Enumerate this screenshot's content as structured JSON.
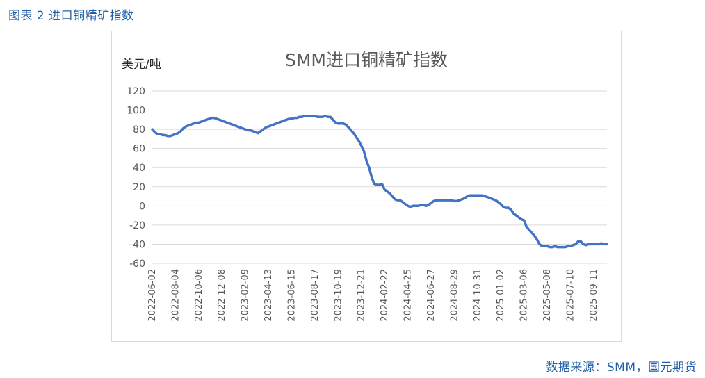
{
  "figure": {
    "caption": "图表 2 进口铜精矿指数",
    "source": "数据来源：SMM，国元期货"
  },
  "chart_data": {
    "type": "line",
    "title": "SMM进口铜精矿指数",
    "ylabel": "美元/吨",
    "xlabel": "",
    "ylim": [
      -60,
      120
    ],
    "yticks": [
      -60,
      -40,
      -20,
      0,
      20,
      40,
      60,
      80,
      100,
      120
    ],
    "grid": true,
    "legend": "none",
    "line_color": "#4472c4",
    "x_tick_labels": [
      "2022-06-02",
      "2022-08-04",
      "2022-10-06",
      "2022-12-08",
      "2023-02-09",
      "2023-04-13",
      "2023-06-15",
      "2023-08-17",
      "2023-10-19",
      "2023-12-21",
      "2024-02-22",
      "2024-04-25",
      "2024-06-27",
      "2024-08-29",
      "2024-10-31",
      "2025-01-02",
      "2025-03-06",
      "2025-05-08",
      "2025-07-10",
      "2025-09-11"
    ],
    "x_range": [
      "2022-06-02",
      "2025-10-17"
    ],
    "series": [
      {
        "points": [
          [
            "2022-06-02",
            80
          ],
          [
            "2022-06-09",
            77
          ],
          [
            "2022-06-16",
            75
          ],
          [
            "2022-06-23",
            75
          ],
          [
            "2022-06-30",
            74
          ],
          [
            "2022-07-07",
            74
          ],
          [
            "2022-07-14",
            73
          ],
          [
            "2022-07-21",
            73
          ],
          [
            "2022-07-28",
            74
          ],
          [
            "2022-08-04",
            75
          ],
          [
            "2022-08-11",
            76
          ],
          [
            "2022-08-18",
            78
          ],
          [
            "2022-08-25",
            81
          ],
          [
            "2022-09-01",
            83
          ],
          [
            "2022-09-08",
            84
          ],
          [
            "2022-09-15",
            85
          ],
          [
            "2022-09-22",
            86
          ],
          [
            "2022-09-29",
            87
          ],
          [
            "2022-10-06",
            87
          ],
          [
            "2022-10-13",
            88
          ],
          [
            "2022-10-20",
            89
          ],
          [
            "2022-10-27",
            90
          ],
          [
            "2022-11-03",
            91
          ],
          [
            "2022-11-10",
            92
          ],
          [
            "2022-11-17",
            92
          ],
          [
            "2022-11-24",
            91
          ],
          [
            "2022-12-01",
            90
          ],
          [
            "2022-12-08",
            89
          ],
          [
            "2022-12-15",
            88
          ],
          [
            "2022-12-22",
            87
          ],
          [
            "2022-12-29",
            86
          ],
          [
            "2023-01-05",
            85
          ],
          [
            "2023-01-12",
            84
          ],
          [
            "2023-01-19",
            83
          ],
          [
            "2023-01-26",
            82
          ],
          [
            "2023-02-02",
            81
          ],
          [
            "2023-02-09",
            80
          ],
          [
            "2023-02-16",
            79
          ],
          [
            "2023-02-23",
            79
          ],
          [
            "2023-03-02",
            78
          ],
          [
            "2023-03-09",
            77
          ],
          [
            "2023-03-16",
            76
          ],
          [
            "2023-03-23",
            78
          ],
          [
            "2023-03-30",
            80
          ],
          [
            "2023-04-06",
            82
          ],
          [
            "2023-04-13",
            83
          ],
          [
            "2023-04-20",
            84
          ],
          [
            "2023-04-27",
            85
          ],
          [
            "2023-05-04",
            86
          ],
          [
            "2023-05-11",
            87
          ],
          [
            "2023-05-18",
            88
          ],
          [
            "2023-05-25",
            89
          ],
          [
            "2023-06-01",
            90
          ],
          [
            "2023-06-08",
            91
          ],
          [
            "2023-06-15",
            91
          ],
          [
            "2023-06-22",
            92
          ],
          [
            "2023-06-29",
            92
          ],
          [
            "2023-07-06",
            93
          ],
          [
            "2023-07-13",
            93
          ],
          [
            "2023-07-20",
            94
          ],
          [
            "2023-07-27",
            94
          ],
          [
            "2023-08-03",
            94
          ],
          [
            "2023-08-10",
            94
          ],
          [
            "2023-08-17",
            94
          ],
          [
            "2023-08-24",
            93
          ],
          [
            "2023-08-31",
            93
          ],
          [
            "2023-09-07",
            93
          ],
          [
            "2023-09-14",
            94
          ],
          [
            "2023-09-21",
            93
          ],
          [
            "2023-09-28",
            93
          ],
          [
            "2023-10-05",
            90
          ],
          [
            "2023-10-12",
            87
          ],
          [
            "2023-10-19",
            86
          ],
          [
            "2023-10-26",
            86
          ],
          [
            "2023-11-02",
            86
          ],
          [
            "2023-11-09",
            85
          ],
          [
            "2023-11-16",
            82
          ],
          [
            "2023-11-23",
            79
          ],
          [
            "2023-11-30",
            76
          ],
          [
            "2023-12-07",
            72
          ],
          [
            "2023-12-14",
            68
          ],
          [
            "2023-12-21",
            63
          ],
          [
            "2023-12-28",
            57
          ],
          [
            "2024-01-04",
            47
          ],
          [
            "2024-01-11",
            40
          ],
          [
            "2024-01-18",
            30
          ],
          [
            "2024-01-25",
            23
          ],
          [
            "2024-02-01",
            22
          ],
          [
            "2024-02-08",
            22
          ],
          [
            "2024-02-15",
            23
          ],
          [
            "2024-02-22",
            17
          ],
          [
            "2024-02-29",
            15
          ],
          [
            "2024-03-07",
            13
          ],
          [
            "2024-03-14",
            10
          ],
          [
            "2024-03-21",
            7
          ],
          [
            "2024-03-28",
            6
          ],
          [
            "2024-04-04",
            6
          ],
          [
            "2024-04-11",
            4
          ],
          [
            "2024-04-18",
            2
          ],
          [
            "2024-04-25",
            0
          ],
          [
            "2024-05-02",
            -1
          ],
          [
            "2024-05-09",
            0
          ],
          [
            "2024-05-16",
            0
          ],
          [
            "2024-05-23",
            0
          ],
          [
            "2024-05-30",
            1
          ],
          [
            "2024-06-06",
            1
          ],
          [
            "2024-06-13",
            0
          ],
          [
            "2024-06-20",
            1
          ],
          [
            "2024-06-27",
            3
          ],
          [
            "2024-07-04",
            5
          ],
          [
            "2024-07-11",
            6
          ],
          [
            "2024-07-18",
            6
          ],
          [
            "2024-07-25",
            6
          ],
          [
            "2024-08-01",
            6
          ],
          [
            "2024-08-08",
            6
          ],
          [
            "2024-08-15",
            6
          ],
          [
            "2024-08-22",
            6
          ],
          [
            "2024-08-29",
            5
          ],
          [
            "2024-09-05",
            5
          ],
          [
            "2024-09-12",
            6
          ],
          [
            "2024-09-19",
            7
          ],
          [
            "2024-09-26",
            8
          ],
          [
            "2024-10-03",
            10
          ],
          [
            "2024-10-10",
            11
          ],
          [
            "2024-10-17",
            11
          ],
          [
            "2024-10-24",
            11
          ],
          [
            "2024-10-31",
            11
          ],
          [
            "2024-11-07",
            11
          ],
          [
            "2024-11-14",
            11
          ],
          [
            "2024-11-21",
            10
          ],
          [
            "2024-11-28",
            9
          ],
          [
            "2024-12-05",
            8
          ],
          [
            "2024-12-12",
            7
          ],
          [
            "2024-12-19",
            6
          ],
          [
            "2024-12-26",
            4
          ],
          [
            "2025-01-02",
            2
          ],
          [
            "2025-01-09",
            -1
          ],
          [
            "2025-01-16",
            -2
          ],
          [
            "2025-01-23",
            -2
          ],
          [
            "2025-01-30",
            -4
          ],
          [
            "2025-02-06",
            -8
          ],
          [
            "2025-02-13",
            -10
          ],
          [
            "2025-02-20",
            -12
          ],
          [
            "2025-02-27",
            -14
          ],
          [
            "2025-03-06",
            -15
          ],
          [
            "2025-03-13",
            -22
          ],
          [
            "2025-03-20",
            -25
          ],
          [
            "2025-03-27",
            -28
          ],
          [
            "2025-04-03",
            -31
          ],
          [
            "2025-04-10",
            -35
          ],
          [
            "2025-04-17",
            -40
          ],
          [
            "2025-04-24",
            -42
          ],
          [
            "2025-05-01",
            -42
          ],
          [
            "2025-05-08",
            -42
          ],
          [
            "2025-05-15",
            -43
          ],
          [
            "2025-05-22",
            -43
          ],
          [
            "2025-05-29",
            -42
          ],
          [
            "2025-06-05",
            -43
          ],
          [
            "2025-06-12",
            -43
          ],
          [
            "2025-06-19",
            -43
          ],
          [
            "2025-06-26",
            -43
          ],
          [
            "2025-07-03",
            -42
          ],
          [
            "2025-07-10",
            -42
          ],
          [
            "2025-07-17",
            -41
          ],
          [
            "2025-07-24",
            -40
          ],
          [
            "2025-07-31",
            -37
          ],
          [
            "2025-08-07",
            -37
          ],
          [
            "2025-08-14",
            -40
          ],
          [
            "2025-08-21",
            -41
          ],
          [
            "2025-08-28",
            -40
          ],
          [
            "2025-09-04",
            -40
          ],
          [
            "2025-09-11",
            -40
          ],
          [
            "2025-09-18",
            -40
          ],
          [
            "2025-09-25",
            -40
          ],
          [
            "2025-10-02",
            -39
          ],
          [
            "2025-10-09",
            -40
          ],
          [
            "2025-10-17",
            -40
          ]
        ]
      }
    ]
  }
}
